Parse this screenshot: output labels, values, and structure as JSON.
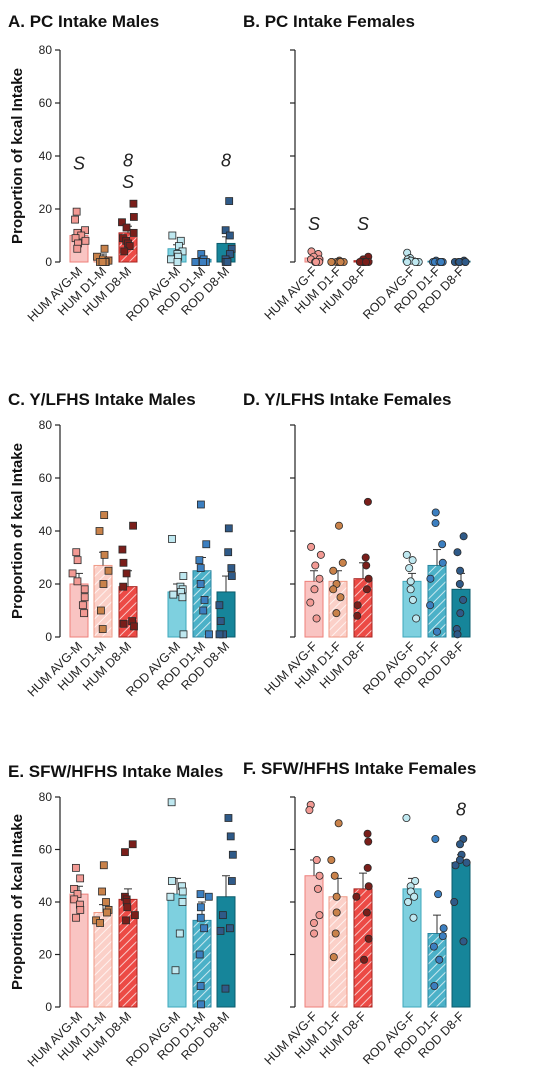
{
  "figure": {
    "ylabel": "Proportion of kcal Intake",
    "ylim": [
      0,
      80
    ],
    "yticks": [
      0,
      20,
      40,
      60,
      80
    ]
  },
  "styles": {
    "HUM AVG": {
      "fill": "#f9c4c2",
      "edge": "#ee7f7a",
      "marker": "#f29a94",
      "hatch": false
    },
    "HUM D1": {
      "fill": "#fbd0c8",
      "edge": "#ef9a86",
      "marker": "#c9824a",
      "hatch": true
    },
    "HUM D8": {
      "fill": "#ec4a45",
      "edge": "#a82420",
      "marker": "#7a1e1a",
      "hatch": true
    },
    "ROD AVG": {
      "fill": "#7ed0df",
      "edge": "#3ea7bb",
      "marker": "#bfe8f0",
      "hatch": false
    },
    "ROD D1": {
      "fill": "#4bb1c8",
      "edge": "#2a86a0",
      "marker": "#3c7fc0",
      "hatch": true
    },
    "ROD D8": {
      "fill": "#16859a",
      "edge": "#0b5c6c",
      "marker": "#2f5a88",
      "hatch": false
    }
  },
  "chart_data": [
    {
      "id": "A",
      "type": "bar",
      "title": "A. PC Intake Males",
      "ylabel": "Proportion of kcal Intake",
      "ylim": [
        0,
        80
      ],
      "marker": "square",
      "categories": [
        "HUM AVG-M",
        "HUM D1-M",
        "HUM D8-M",
        "ROD AVG-M",
        "ROD D1-M",
        "ROD D8-M"
      ],
      "values": [
        10,
        2,
        11,
        5,
        1,
        7
      ],
      "errors": [
        2,
        1,
        2.5,
        1.5,
        0.5,
        2.5
      ],
      "points": [
        [
          19,
          16,
          12,
          11,
          10,
          9,
          8,
          7,
          5
        ],
        [
          5,
          2,
          1,
          0.5,
          0,
          0,
          0,
          0
        ],
        [
          22,
          17,
          15,
          13,
          11,
          9,
          8,
          7,
          6,
          4
        ],
        [
          10,
          8,
          6,
          4,
          3,
          2,
          1,
          0
        ],
        [
          3,
          1,
          0,
          0,
          0,
          0,
          0,
          0
        ],
        [
          23,
          12,
          10,
          5,
          3,
          1,
          0,
          0
        ]
      ],
      "annotations": [
        {
          "category": 0,
          "y": 35,
          "text": "S"
        },
        {
          "category": 2,
          "y": 28,
          "text": "S"
        },
        {
          "category": 2,
          "y": 36,
          "text": "8"
        },
        {
          "category": 5,
          "y": 36,
          "text": "8"
        }
      ]
    },
    {
      "id": "B",
      "type": "bar",
      "title": "B. PC Intake Females",
      "ylabel": "",
      "ylim": [
        0,
        80
      ],
      "marker": "circle",
      "categories": [
        "HUM AVG-F",
        "HUM D1-F",
        "HUM D8-F",
        "ROD AVG-F",
        "ROD D1-F",
        "ROD D8-F"
      ],
      "values": [
        1.5,
        0.3,
        0.5,
        1,
        0.3,
        0.3
      ],
      "errors": [
        0.8,
        0.2,
        0.3,
        0.5,
        0.2,
        0.2
      ],
      "points": [
        [
          4,
          3,
          2,
          1,
          1,
          0,
          0,
          0
        ],
        [
          0.5,
          0,
          0,
          0,
          0,
          0,
          0,
          0
        ],
        [
          2,
          1,
          0,
          0,
          0,
          0,
          0,
          0
        ],
        [
          3.5,
          1.5,
          1,
          0.5,
          0,
          0,
          0,
          0
        ],
        [
          0.5,
          0,
          0,
          0,
          0,
          0,
          0,
          0
        ],
        [
          0.5,
          0,
          0,
          0,
          0,
          0,
          0,
          0
        ]
      ],
      "annotations": [
        {
          "category": 0,
          "y": 12,
          "text": "S"
        },
        {
          "category": 2,
          "y": 12,
          "text": "S"
        }
      ]
    },
    {
      "id": "C",
      "type": "bar",
      "title": "C. Y/LFHS Intake Males",
      "ylabel": "Proportion of kcal Intake",
      "ylim": [
        0,
        80
      ],
      "marker": "square",
      "categories": [
        "HUM AVG-M",
        "HUM D1-M",
        "HUM D8-M",
        "ROD AVG-M",
        "ROD D1-M",
        "ROD D8-M"
      ],
      "values": [
        20,
        27,
        19,
        17,
        25,
        17
      ],
      "errors": [
        4,
        5,
        6,
        3,
        5,
        6
      ],
      "points": [
        [
          32,
          29,
          24,
          21,
          18,
          15,
          12,
          9
        ],
        [
          46,
          40,
          31,
          25,
          20,
          10,
          3
        ],
        [
          42,
          33,
          28,
          24,
          19,
          6,
          5,
          4
        ],
        [
          37,
          23,
          19,
          18,
          17,
          16,
          15,
          1
        ],
        [
          50,
          35,
          29,
          26,
          20,
          14,
          10,
          1
        ],
        [
          41,
          32,
          26,
          23,
          12,
          6,
          1,
          1
        ]
      ],
      "annotations": []
    },
    {
      "id": "D",
      "type": "bar",
      "title": "D. Y/LFHS Intake Females",
      "ylabel": "",
      "ylim": [
        0,
        80
      ],
      "marker": "circle",
      "categories": [
        "HUM AVG-F",
        "HUM D1-F",
        "HUM D8-F",
        "ROD AVG-F",
        "ROD D1-F",
        "ROD D8-F"
      ],
      "values": [
        21,
        21,
        22,
        21,
        27,
        18
      ],
      "errors": [
        4,
        4,
        6,
        3,
        6,
        6
      ],
      "points": [
        [
          34,
          31,
          27,
          22,
          18,
          13,
          7
        ],
        [
          42,
          28,
          25,
          20,
          18,
          15,
          9
        ],
        [
          51,
          30,
          27,
          22,
          18,
          12,
          8
        ],
        [
          31,
          29,
          26,
          21,
          18,
          14,
          7
        ],
        [
          47,
          43,
          35,
          28,
          22,
          12,
          2
        ],
        [
          38,
          32,
          25,
          20,
          14,
          9,
          3,
          1
        ]
      ],
      "annotations": []
    },
    {
      "id": "E",
      "type": "bar",
      "title": "E. SFW/HFHS Intake Males",
      "ylabel": "Proportion of kcal Intake",
      "ylim": [
        0,
        80
      ],
      "marker": "square",
      "categories": [
        "HUM AVG-M",
        "HUM D1-M",
        "HUM D8-M",
        "ROD AVG-M",
        "ROD D1-M",
        "ROD D8-M"
      ],
      "values": [
        43,
        36,
        41,
        43,
        33,
        42
      ],
      "errors": [
        3,
        3,
        4,
        6,
        7,
        8
      ],
      "points": [
        [
          53,
          49,
          45,
          43,
          41,
          39,
          37,
          34
        ],
        [
          54,
          44,
          40,
          37,
          36,
          33,
          32
        ],
        [
          62,
          59,
          42,
          41,
          40,
          38,
          35,
          33
        ],
        [
          78,
          48,
          46,
          44,
          42,
          40,
          28,
          14
        ],
        [
          43,
          42,
          38,
          34,
          30,
          20,
          8,
          1
        ],
        [
          72,
          65,
          58,
          48,
          35,
          30,
          29,
          7
        ]
      ],
      "annotations": []
    },
    {
      "id": "F",
      "type": "bar",
      "title": "F. SFW/HFHS Intake Females",
      "ylabel": "",
      "ylim": [
        0,
        80
      ],
      "marker": "circle",
      "categories": [
        "HUM AVG-F",
        "HUM D1-F",
        "HUM D8-F",
        "ROD AVG-F",
        "ROD D1-F",
        "ROD D8-F"
      ],
      "values": [
        50,
        42,
        45,
        45,
        28,
        55
      ],
      "errors": [
        6,
        7,
        6,
        4,
        7,
        3
      ],
      "points": [
        [
          77,
          75,
          56,
          50,
          45,
          35,
          32,
          28
        ],
        [
          70,
          56,
          50,
          42,
          36,
          28,
          19
        ],
        [
          66,
          63,
          53,
          46,
          42,
          36,
          26,
          18
        ],
        [
          72,
          48,
          46,
          44,
          42,
          40,
          34
        ],
        [
          64,
          43,
          30,
          27,
          23,
          18,
          8
        ],
        [
          64,
          62,
          58,
          56,
          55,
          54,
          40,
          25
        ]
      ],
      "annotations": [
        {
          "category": 5,
          "y": 73,
          "text": "8"
        }
      ]
    }
  ]
}
